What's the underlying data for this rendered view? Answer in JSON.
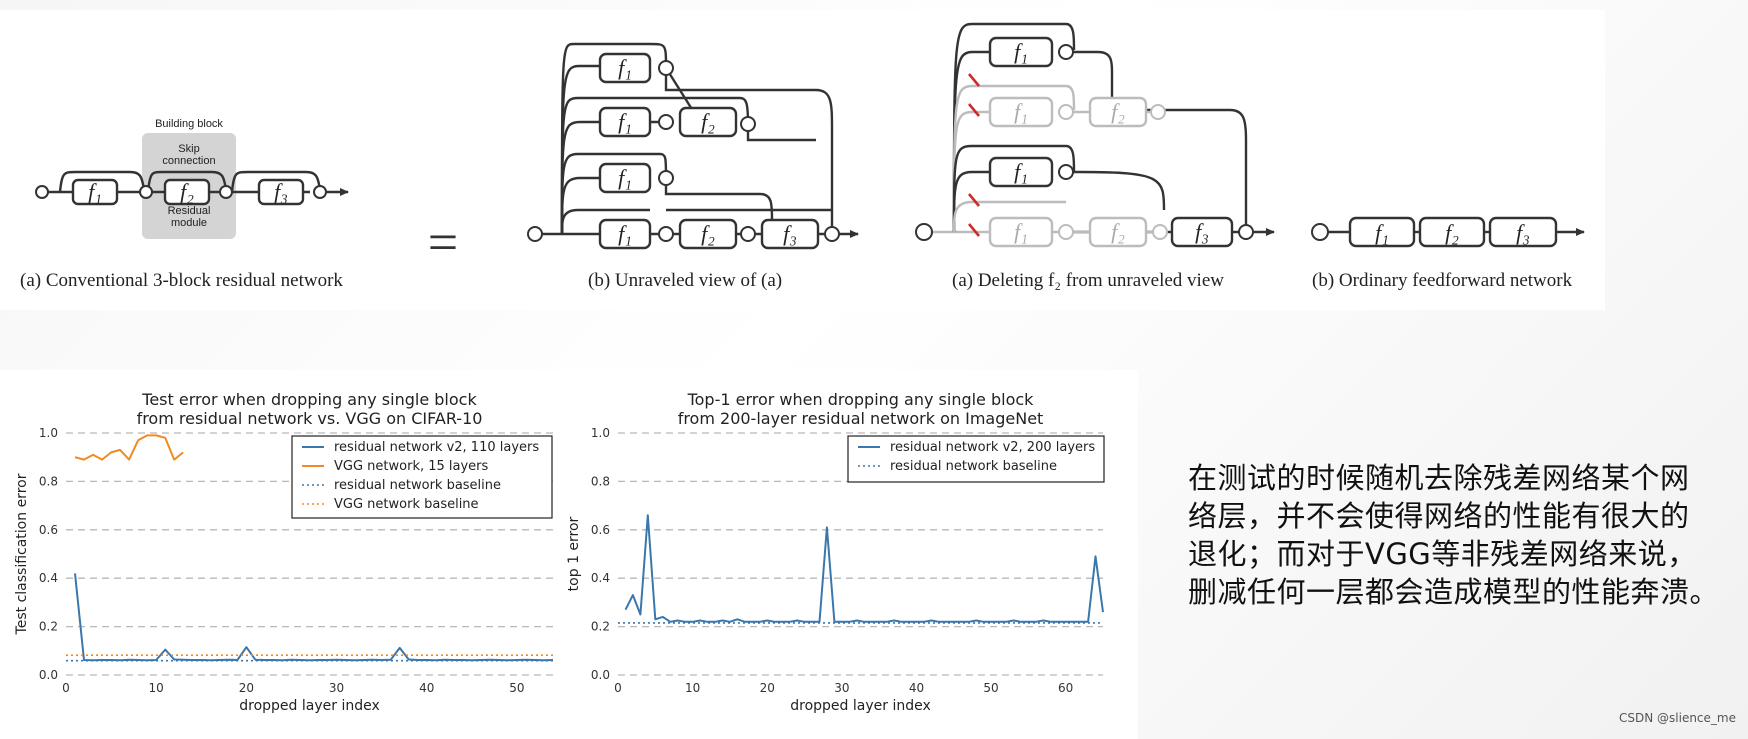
{
  "figure_top": {
    "caption_a": "(a) Conventional 3-block residual network",
    "caption_b": "(b) Unraveled view of (a)",
    "caption_c": "(a) Deleting f₂ from unraveled view",
    "caption_d": "(b) Ordinary feedforward network",
    "building_block_label": "Building block",
    "skip_label_1": "Skip",
    "skip_label_2": "connection",
    "residual_label_1": "Residual",
    "residual_label_2": "module",
    "f1": "f₁",
    "f2": "f₂",
    "f3": "f₃",
    "equals": "="
  },
  "chart_data": [
    {
      "type": "line",
      "title": "Test error when dropping any single block",
      "subtitle": "from residual network vs. VGG on CIFAR-10",
      "xlabel": "dropped layer index",
      "ylabel": "Test classification error",
      "xlim": [
        0,
        54
      ],
      "ylim": [
        0.0,
        1.0
      ],
      "xticks": [
        0,
        10,
        20,
        30,
        40,
        50
      ],
      "yticks": [
        0.0,
        0.2,
        0.4,
        0.6,
        0.8,
        1.0
      ],
      "ytick_labels": [
        "0.0",
        "0.2",
        "0.4",
        "0.6",
        "0.8",
        "1.0"
      ],
      "grid": "horizontal dashed",
      "legend_position": "top-right",
      "series": [
        {
          "name": "residual network v2, 110 layers",
          "style": "solid",
          "color": "#3a77ad",
          "x": [
            1,
            2,
            3,
            4,
            5,
            6,
            7,
            8,
            9,
            10,
            11,
            12,
            13,
            14,
            15,
            16,
            17,
            18,
            19,
            20,
            21,
            22,
            23,
            24,
            25,
            26,
            27,
            28,
            29,
            30,
            31,
            32,
            33,
            34,
            35,
            36,
            37,
            38,
            39,
            40,
            41,
            42,
            43,
            44,
            45,
            46,
            47,
            48,
            49,
            50,
            51,
            52,
            53,
            54
          ],
          "values": [
            0.42,
            0.062,
            0.061,
            0.062,
            0.062,
            0.061,
            0.063,
            0.062,
            0.061,
            0.062,
            0.105,
            0.064,
            0.063,
            0.062,
            0.062,
            0.061,
            0.062,
            0.063,
            0.062,
            0.115,
            0.063,
            0.062,
            0.062,
            0.061,
            0.063,
            0.062,
            0.061,
            0.062,
            0.062,
            0.063,
            0.062,
            0.061,
            0.062,
            0.063,
            0.062,
            0.063,
            0.112,
            0.064,
            0.062,
            0.062,
            0.061,
            0.063,
            0.062,
            0.062,
            0.061,
            0.062,
            0.063,
            0.062,
            0.061,
            0.062,
            0.063,
            0.062,
            0.061,
            0.062
          ]
        },
        {
          "name": "VGG network, 15 layers",
          "style": "solid",
          "color": "#f08a22",
          "x": [
            1,
            2,
            3,
            4,
            5,
            6,
            7,
            8,
            9,
            10,
            11,
            12,
            13
          ],
          "values": [
            0.9,
            0.89,
            0.91,
            0.89,
            0.92,
            0.93,
            0.89,
            0.97,
            0.99,
            0.99,
            0.98,
            0.89,
            0.92
          ]
        },
        {
          "name": "residual network baseline",
          "style": "dotted",
          "color": "#3a77ad",
          "constant": 0.059
        },
        {
          "name": "VGG network baseline",
          "style": "dotted",
          "color": "#f08a22",
          "constant": 0.082
        }
      ]
    },
    {
      "type": "line",
      "title": "Top-1 error when dropping any single block",
      "subtitle": "from 200-layer residual network on ImageNet",
      "xlabel": "dropped layer index",
      "ylabel": "top 1 error",
      "xlim": [
        0,
        65
      ],
      "ylim": [
        0.0,
        1.0
      ],
      "xticks": [
        0,
        10,
        20,
        30,
        40,
        50,
        60
      ],
      "yticks": [
        0.0,
        0.2,
        0.4,
        0.6,
        0.8,
        1.0
      ],
      "ytick_labels": [
        "0.0",
        "0.2",
        "0.4",
        "0.6",
        "0.8",
        "1.0"
      ],
      "grid": "horizontal dashed",
      "legend_position": "top-right",
      "series": [
        {
          "name": "residual network v2, 200 layers",
          "style": "solid",
          "color": "#3a77ad",
          "x": [
            1,
            2,
            3,
            4,
            5,
            6,
            7,
            8,
            9,
            10,
            11,
            12,
            13,
            14,
            15,
            16,
            17,
            18,
            19,
            20,
            21,
            22,
            23,
            24,
            25,
            26,
            27,
            28,
            29,
            30,
            31,
            32,
            33,
            34,
            35,
            36,
            37,
            38,
            39,
            40,
            41,
            42,
            43,
            44,
            45,
            46,
            47,
            48,
            49,
            50,
            51,
            52,
            53,
            54,
            55,
            56,
            57,
            58,
            59,
            60,
            61,
            62,
            63,
            64,
            65
          ],
          "values": [
            0.27,
            0.33,
            0.25,
            0.66,
            0.23,
            0.24,
            0.22,
            0.225,
            0.22,
            0.22,
            0.225,
            0.22,
            0.22,
            0.225,
            0.22,
            0.23,
            0.22,
            0.22,
            0.22,
            0.225,
            0.22,
            0.22,
            0.22,
            0.225,
            0.22,
            0.22,
            0.22,
            0.61,
            0.22,
            0.22,
            0.22,
            0.225,
            0.22,
            0.22,
            0.22,
            0.22,
            0.225,
            0.22,
            0.22,
            0.22,
            0.22,
            0.225,
            0.22,
            0.22,
            0.22,
            0.22,
            0.22,
            0.225,
            0.22,
            0.22,
            0.22,
            0.22,
            0.225,
            0.22,
            0.22,
            0.22,
            0.225,
            0.22,
            0.22,
            0.22,
            0.22,
            0.22,
            0.22,
            0.49,
            0.26
          ]
        },
        {
          "name": "residual network baseline",
          "style": "dotted",
          "color": "#3a77ad",
          "constant": 0.215
        }
      ]
    }
  ],
  "side_text": {
    "line1": "在测试的时候随机去除残差网络某个网",
    "line2": "络层，并不会使得网络的性能有很大的",
    "line3": "退化；而对于VGG等非残差网络来说，",
    "line4": "删减任何一层都会造成模型的性能奔溃。"
  },
  "watermark": "CSDN @slience_me"
}
